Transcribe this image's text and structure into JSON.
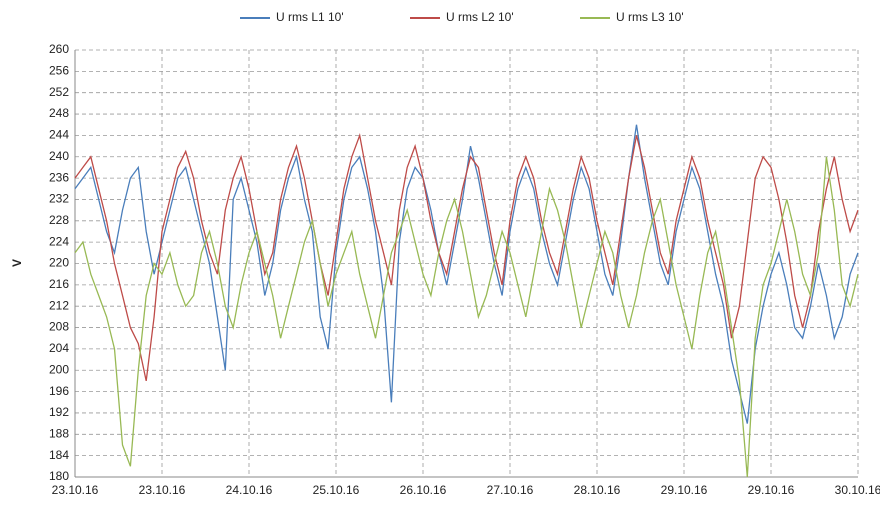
{
  "chart_data": {
    "type": "line",
    "ylabel": "V",
    "ylim": [
      180,
      260
    ],
    "yticks": [
      180,
      184,
      188,
      192,
      196,
      200,
      204,
      208,
      212,
      216,
      220,
      224,
      228,
      232,
      236,
      240,
      244,
      248,
      252,
      256,
      260
    ],
    "xticks": [
      "23.10.16",
      "23.10.16",
      "24.10.16",
      "25.10.16",
      "26.10.16",
      "27.10.16",
      "28.10.16",
      "29.10.16",
      "29.10.16",
      "30.10.16"
    ],
    "grid": true,
    "legend": "top",
    "series": [
      {
        "name": "U rms L1 10'",
        "color": "#4a7ebb",
        "values": [
          234,
          236,
          238,
          232,
          226,
          222,
          230,
          236,
          238,
          226,
          218,
          224,
          230,
          236,
          238,
          232,
          226,
          220,
          210,
          200,
          232,
          236,
          230,
          224,
          214,
          220,
          230,
          236,
          240,
          232,
          226,
          210,
          204,
          222,
          232,
          238,
          240,
          234,
          226,
          214,
          194,
          224,
          234,
          238,
          236,
          230,
          222,
          216,
          224,
          232,
          242,
          236,
          228,
          220,
          214,
          226,
          234,
          238,
          234,
          226,
          220,
          216,
          224,
          232,
          238,
          234,
          226,
          218,
          214,
          224,
          236,
          246,
          236,
          228,
          220,
          216,
          226,
          232,
          238,
          234,
          226,
          218,
          212,
          202,
          196,
          190,
          204,
          212,
          218,
          222,
          216,
          208,
          206,
          212,
          220,
          214,
          206,
          210,
          218,
          222
        ]
      },
      {
        "name": "U rms L2 10'",
        "color": "#be4b48",
        "values": [
          236,
          238,
          240,
          234,
          228,
          220,
          214,
          208,
          205,
          198,
          210,
          226,
          232,
          238,
          241,
          236,
          228,
          222,
          218,
          230,
          236,
          240,
          234,
          226,
          218,
          222,
          232,
          238,
          242,
          236,
          228,
          220,
          214,
          224,
          234,
          240,
          244,
          236,
          228,
          222,
          216,
          230,
          238,
          242,
          236,
          228,
          222,
          218,
          226,
          234,
          240,
          238,
          230,
          222,
          216,
          228,
          236,
          240,
          236,
          228,
          222,
          218,
          226,
          234,
          240,
          236,
          228,
          222,
          216,
          226,
          236,
          244,
          238,
          230,
          222,
          218,
          228,
          234,
          240,
          236,
          228,
          222,
          216,
          206,
          212,
          224,
          236,
          240,
          238,
          232,
          224,
          214,
          208,
          214,
          226,
          234,
          240,
          232,
          226,
          230
        ]
      },
      {
        "name": "U rms L3 10'",
        "color": "#98b954",
        "values": [
          222,
          224,
          218,
          214,
          210,
          204,
          186,
          182,
          200,
          214,
          220,
          218,
          222,
          216,
          212,
          214,
          222,
          226,
          220,
          212,
          208,
          216,
          222,
          226,
          220,
          214,
          206,
          212,
          218,
          224,
          228,
          220,
          212,
          218,
          222,
          226,
          218,
          212,
          206,
          214,
          222,
          226,
          230,
          224,
          218,
          214,
          222,
          228,
          232,
          226,
          218,
          210,
          214,
          220,
          226,
          222,
          216,
          210,
          218,
          226,
          234,
          230,
          224,
          216,
          208,
          214,
          220,
          226,
          222,
          214,
          208,
          214,
          222,
          228,
          232,
          224,
          216,
          210,
          204,
          214,
          222,
          226,
          218,
          208,
          198,
          180,
          206,
          216,
          220,
          226,
          232,
          226,
          218,
          214,
          222,
          240,
          230,
          216,
          212,
          218
        ]
      }
    ]
  }
}
